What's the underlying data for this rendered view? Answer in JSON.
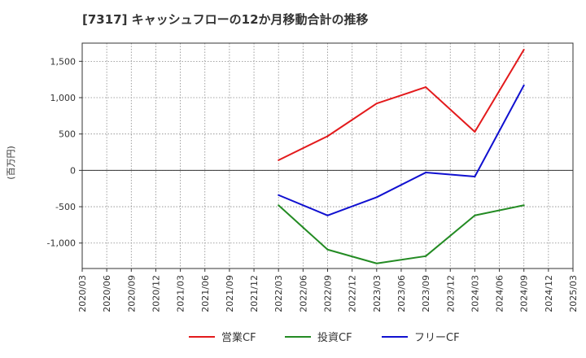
{
  "chart_data": {
    "type": "line",
    "title": "[7317]  キャッシュフローの12か月移動合計の推移",
    "ylabel": "(百万円)",
    "xlabel": "",
    "ylim": [
      -1350,
      1750
    ],
    "y_ticks": [
      -1000,
      -500,
      0,
      500,
      1000,
      1500
    ],
    "y_tick_labels": [
      "-1,000",
      "-500",
      "0",
      "500",
      "1,000",
      "1,500"
    ],
    "x": [
      "2020/03",
      "2020/06",
      "2020/09",
      "2020/12",
      "2021/03",
      "2021/06",
      "2021/09",
      "2021/12",
      "2022/03",
      "2022/06",
      "2022/09",
      "2022/12",
      "2023/03",
      "2023/06",
      "2023/09",
      "2023/12",
      "2024/03",
      "2024/06",
      "2024/09",
      "2024/12",
      "2025/03"
    ],
    "grid": true,
    "legend_position": "bottom",
    "series": [
      {
        "name": "営業CF",
        "color": "#e31a1c",
        "points": [
          [
            "2022/03",
            140
          ],
          [
            "2022/09",
            470
          ],
          [
            "2023/03",
            920
          ],
          [
            "2023/09",
            1145
          ],
          [
            "2024/03",
            530
          ],
          [
            "2024/09",
            1660
          ]
        ]
      },
      {
        "name": "投資CF",
        "color": "#238b23",
        "points": [
          [
            "2022/03",
            -480
          ],
          [
            "2022/09",
            -1090
          ],
          [
            "2023/03",
            -1280
          ],
          [
            "2023/09",
            -1180
          ],
          [
            "2024/03",
            -620
          ],
          [
            "2024/09",
            -480
          ]
        ]
      },
      {
        "name": "フリーCF",
        "color": "#1010d0",
        "points": [
          [
            "2022/03",
            -340
          ],
          [
            "2022/09",
            -620
          ],
          [
            "2023/03",
            -370
          ],
          [
            "2023/09",
            -30
          ],
          [
            "2024/03",
            -85
          ],
          [
            "2024/09",
            1170
          ]
        ]
      }
    ]
  }
}
